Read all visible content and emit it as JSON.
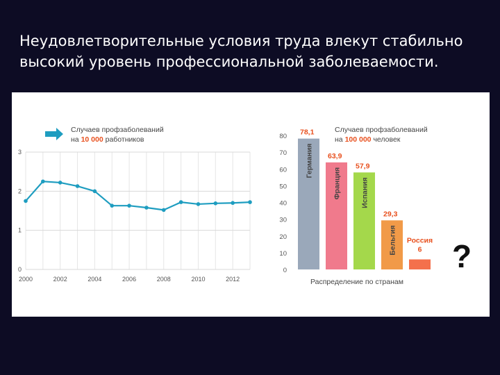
{
  "slide": {
    "title_line1": "Неудовлетворительные условия труда влекут стабильно",
    "title_line2": "высокий уровень профессиональной заболеваемости."
  },
  "colors": {
    "line": "#1e9dc0",
    "arrow": "#1e9dc0",
    "highlight": "#e8501e",
    "germany": "#9aa8ba",
    "france": "#f07a8c",
    "spain": "#a4d84b",
    "belgium": "#f19a48",
    "russia": "#f4704c"
  },
  "chart_data": [
    {
      "type": "line",
      "legend_line1_prefix": "Случаев профзаболеваний",
      "legend_line2_prefix": "на",
      "legend_line2_highlight": "10 000",
      "legend_line2_suffix": "работников",
      "x": [
        2000,
        2001,
        2002,
        2003,
        2004,
        2005,
        2006,
        2007,
        2008,
        2009,
        2010,
        2011,
        2012,
        2013
      ],
      "series": [
        {
          "values": [
            1.75,
            2.25,
            2.22,
            2.13,
            2.0,
            1.63,
            1.63,
            1.58,
            1.52,
            1.72,
            1.67,
            1.69,
            1.7,
            1.72
          ]
        }
      ],
      "xticks": [
        "2000",
        "2002",
        "2004",
        "2006",
        "2008",
        "2010",
        "2012"
      ],
      "yticks": [
        "0",
        "1",
        "2",
        "3"
      ],
      "ylim": [
        0,
        3
      ]
    },
    {
      "type": "bar",
      "legend_line1": "Случаев профзаболеваний",
      "legend_line2_prefix": "на",
      "legend_line2_highlight": "100 000",
      "legend_line2_suffix": "человек",
      "xlabel": "Распределение по странам",
      "categories": [
        "Германия",
        "Франция",
        "Испания",
        "Бельгия",
        "Россия"
      ],
      "values": [
        78.1,
        63.9,
        57.9,
        29.3,
        6
      ],
      "value_labels": [
        "78,1",
        "63,9",
        "57,9",
        "29,3",
        "6"
      ],
      "yticks": [
        "0",
        "10",
        "20",
        "30",
        "40",
        "50",
        "60",
        "70",
        "80"
      ],
      "ylim": [
        0,
        80
      ],
      "unknown_mark": "?"
    }
  ]
}
